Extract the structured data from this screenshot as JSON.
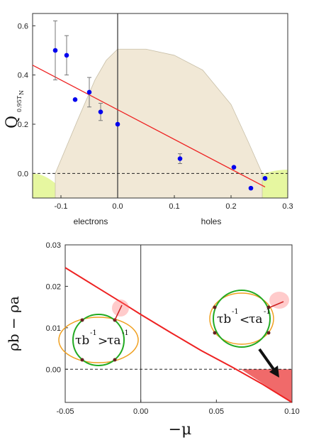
{
  "chart_data": [
    {
      "type": "scatter",
      "ylabel": "Q",
      "ylabel_subscript": "0.95T",
      "ylabel_sub_subscript": "N",
      "xlim": [
        -0.15,
        0.3
      ],
      "ylim": [
        -0.1,
        0.65
      ],
      "xticks": [
        -0.1,
        0.0,
        0.1,
        0.2,
        0.3
      ],
      "xtick_labels": [
        "-0.1",
        "0.0",
        "0.1",
        "0.2",
        "0.3"
      ],
      "yticks": [
        0.0,
        0.2,
        0.4,
        0.6
      ],
      "ytick_labels": [
        "0.0",
        "0.2",
        "0.4",
        "0.6"
      ],
      "region_labels": {
        "left": "electrons",
        "right": "holes"
      },
      "series": [
        {
          "points": [
            {
              "x": -0.11,
              "y": 0.5,
              "err": 0.12
            },
            {
              "x": -0.09,
              "y": 0.48,
              "err": 0.08
            },
            {
              "x": -0.075,
              "y": 0.3,
              "err": 0.0
            },
            {
              "x": -0.05,
              "y": 0.33,
              "err": 0.06
            },
            {
              "x": -0.03,
              "y": 0.25,
              "err": 0.035
            },
            {
              "x": 0.0,
              "y": 0.2,
              "err": 0.0
            },
            {
              "x": 0.11,
              "y": 0.06,
              "err": 0.02
            },
            {
              "x": 0.205,
              "y": 0.025,
              "err": 0.0
            },
            {
              "x": 0.235,
              "y": -0.06,
              "err": 0.0
            },
            {
              "x": 0.26,
              "y": -0.02,
              "err": 0.0
            }
          ],
          "color": "#0000ee"
        }
      ],
      "fit_line": {
        "x": [
          -0.15,
          0.26
        ],
        "y": [
          0.44,
          -0.055
        ],
        "color": "#ee2222"
      },
      "dome_curve": {
        "x": [
          -0.11,
          -0.07,
          -0.04,
          -0.02,
          0.0,
          0.05,
          0.1,
          0.15,
          0.2,
          0.23,
          0.255
        ],
        "y": [
          0.0,
          0.22,
          0.38,
          0.46,
          0.505,
          0.505,
          0.48,
          0.42,
          0.28,
          0.13,
          0.0
        ],
        "color": "#f1e8d6"
      },
      "green_regions": {
        "color": "#e6f7a0"
      },
      "zero_line": "dashed",
      "vertical_line_x": 0.0
    },
    {
      "type": "line",
      "xlabel": "−μ",
      "ylabel": "ρb − ρa",
      "xlim": [
        -0.05,
        0.1
      ],
      "ylim": [
        -0.008,
        0.03
      ],
      "xticks": [
        -0.05,
        0.0,
        0.05,
        0.1
      ],
      "xtick_labels": [
        "-0.05",
        "0.00",
        "0.05",
        "0.10"
      ],
      "yticks": [
        0.0,
        0.01,
        0.02,
        0.03
      ],
      "ytick_labels": [
        "0.00",
        "0.01",
        "0.02",
        "0.03"
      ],
      "curve": {
        "x": [
          -0.05,
          -0.03,
          -0.01,
          0.0,
          0.02,
          0.04,
          0.06,
          0.08,
          0.1
        ],
        "y": [
          0.0245,
          0.02,
          0.0155,
          0.0132,
          0.0088,
          0.0045,
          0.0006,
          -0.0035,
          -0.008
        ],
        "color": "#ee2222"
      },
      "shaded_negative_region": {
        "color": "#f06a6a"
      },
      "zero_line": "dashed",
      "vertical_line_x": 0.0,
      "insets": [
        {
          "text_left": "τb",
          "relation": ">",
          "text_right": "τa",
          "superscript": "-1"
        },
        {
          "text_left": "τb",
          "relation": "<",
          "text_right": "τa",
          "superscript": "-1"
        }
      ],
      "inset_colors": {
        "circle": "#22aa22",
        "ellipse": "#f0a020",
        "dot": "#662222"
      }
    }
  ]
}
